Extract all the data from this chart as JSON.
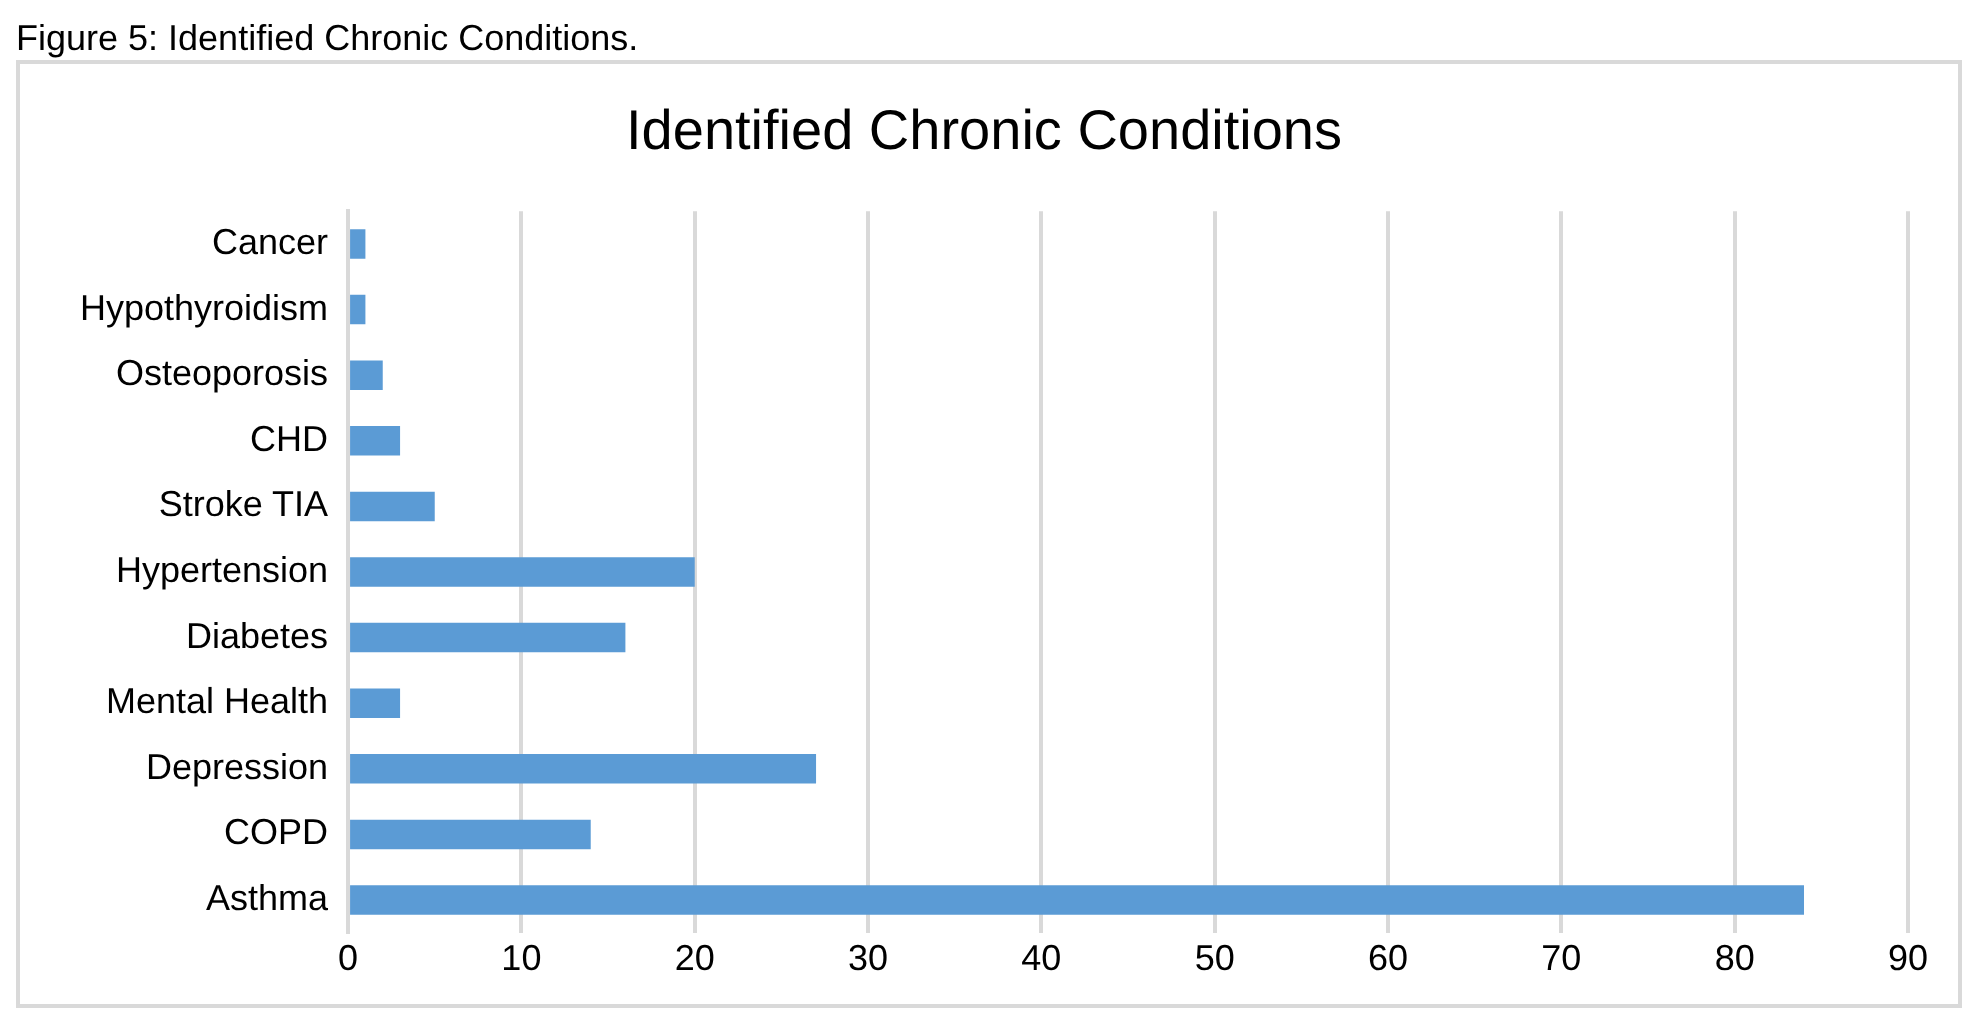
{
  "chart_data": {
    "type": "bar",
    "orientation": "horizontal",
    "title": "Identified Chronic Conditions",
    "annotations": [
      "Figure 5: Identified Chronic Conditions."
    ],
    "categories": [
      "Cancer",
      "Hypothyroidism",
      "Osteoporosis",
      "CHD",
      "Stroke TIA",
      "Hypertension",
      "Diabetes",
      "Mental Health",
      "Depression",
      "COPD",
      "Asthma"
    ],
    "values": [
      1,
      1,
      2,
      3,
      5,
      20,
      16,
      3,
      27,
      14,
      84
    ],
    "color": "#5b9bd5",
    "xlim": [
      0,
      90
    ],
    "xticks": [
      0,
      10,
      20,
      30,
      40,
      50,
      60,
      70,
      80,
      90
    ],
    "grid": "x",
    "legend": false
  }
}
